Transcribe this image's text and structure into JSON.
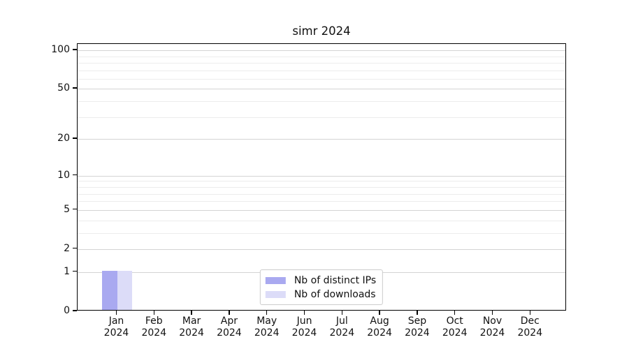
{
  "title": "simr 2024",
  "chart_data": {
    "type": "bar",
    "title": "simr 2024",
    "categories": [
      "Jan",
      "Feb",
      "Mar",
      "Apr",
      "May",
      "Jun",
      "Jul",
      "Aug",
      "Sep",
      "Oct",
      "Nov",
      "Dec"
    ],
    "category_year": "2024",
    "series": [
      {
        "name": "Nb of distinct IPs",
        "color": "#a9a9f0",
        "values": [
          1,
          0,
          0,
          0,
          0,
          0,
          0,
          0,
          0,
          0,
          0,
          0
        ]
      },
      {
        "name": "Nb of downloads",
        "color": "#dcdcf8",
        "values": [
          1,
          0,
          0,
          0,
          0,
          0,
          0,
          0,
          0,
          0,
          0,
          0
        ]
      }
    ],
    "yscale": "log1p",
    "ylim": [
      0,
      112
    ],
    "yticks": [
      0,
      1,
      2,
      5,
      10,
      20,
      50,
      100
    ],
    "minor_yticks": [
      3,
      4,
      6,
      7,
      8,
      9,
      30,
      40,
      60,
      70,
      80,
      90
    ],
    "grid": "horizontal",
    "legend_position": "lower center"
  },
  "colors": {
    "background": "#ffffff",
    "spine": "#000000",
    "major_grid": "#d4d4d4",
    "minor_grid": "#ececec",
    "bar_distinct_ips": "#a9a9f0",
    "bar_downloads": "#dcdcf8",
    "legend_border": "#cccccc"
  }
}
